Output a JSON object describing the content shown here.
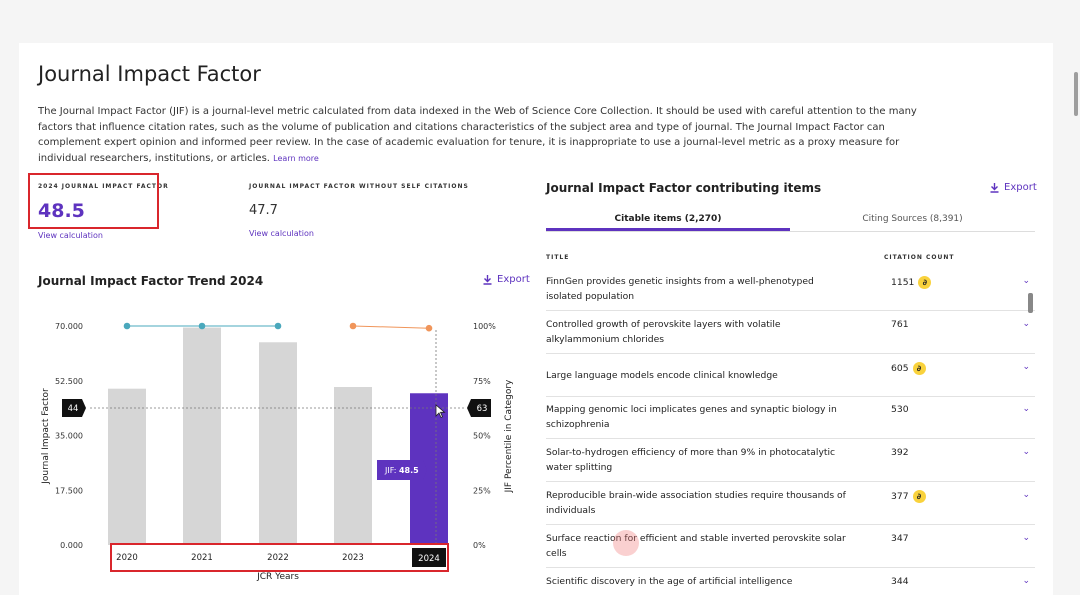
{
  "page": {
    "title": "Journal Impact Factor",
    "description": "The Journal Impact Factor (JIF) is a journal-level metric calculated from data indexed in the Web of Science Core Collection. It should be used with careful attention to the many factors that influence citation rates, such as the volume of publication and citations characteristics of the subject area and type of journal. The Journal Impact Factor can complement expert opinion and informed peer review. In the case of academic evaluation for tenure, it is inappropriate to use a journal-level metric as a proxy measure for individual researchers, institutions, or articles.",
    "learn_more": "Learn more"
  },
  "metrics": {
    "jif_label": "2024 JOURNAL IMPACT FACTOR",
    "jif_value": "48.5",
    "jif_link": "View calculation",
    "noself_label": "JOURNAL IMPACT FACTOR WITHOUT SELF CITATIONS",
    "noself_value": "47.7",
    "noself_link": "View calculation"
  },
  "trend": {
    "title": "Journal Impact Factor Trend 2024",
    "export": "Export"
  },
  "chart_data": {
    "type": "bar",
    "categories": [
      "2020",
      "2021",
      "2022",
      "2023",
      "2024"
    ],
    "values": [
      49.96,
      69.5,
      64.8,
      50.5,
      48.5
    ],
    "highlight_index": 4,
    "percentile_line": [
      100,
      100,
      100,
      100,
      99
    ],
    "ylim": [
      0,
      70
    ],
    "y_ticks": [
      "0.000",
      "17.500",
      "35.000",
      "52.500",
      "70.000"
    ],
    "y2_ticks": [
      "0%",
      "25%",
      "50%",
      "75%",
      "100%"
    ],
    "ylabel": "Journal Impact Factor",
    "y2label": "JIF Percentile in Category",
    "xlabel": "JCR Years",
    "crosshair_left_label": "44",
    "crosshair_right_label": "63",
    "tooltip_label": "JIF:",
    "tooltip_value": "48.5",
    "colors": {
      "bar": "#d6d6d6",
      "highlight": "#5e33bf",
      "teal": "#4aa8bc",
      "orange": "#f0955a"
    }
  },
  "contrib": {
    "title": "Journal Impact Factor contributing items",
    "export": "Export",
    "tabs": [
      {
        "label": "Citable items (2,270)"
      },
      {
        "label": "Citing Sources (8,391)"
      }
    ],
    "col_title": "TITLE",
    "col_count": "CITATION COUNT",
    "rows": [
      {
        "title": "FinnGen provides genetic insights from a well-phenotyped isolated population",
        "count": "1151",
        "oa": true
      },
      {
        "title": "Controlled growth of perovskite layers with volatile alkylammonium chlorides",
        "count": "761",
        "oa": false
      },
      {
        "title": "Large language models encode clinical knowledge",
        "count": "605",
        "oa": true
      },
      {
        "title": "Mapping genomic loci implicates genes and synaptic biology in schizophrenia",
        "count": "530",
        "oa": false
      },
      {
        "title": "Solar-to-hydrogen efficiency of more than 9% in photocatalytic water splitting",
        "count": "392",
        "oa": false
      },
      {
        "title": "Reproducible brain-wide association studies require thousands of individuals",
        "count": "377",
        "oa": true
      },
      {
        "title": "Surface reaction for efficient and stable inverted perovskite solar cells",
        "count": "347",
        "oa": false
      },
      {
        "title": "Scientific discovery in the age of artificial intelligence",
        "count": "344",
        "oa": false
      }
    ]
  }
}
